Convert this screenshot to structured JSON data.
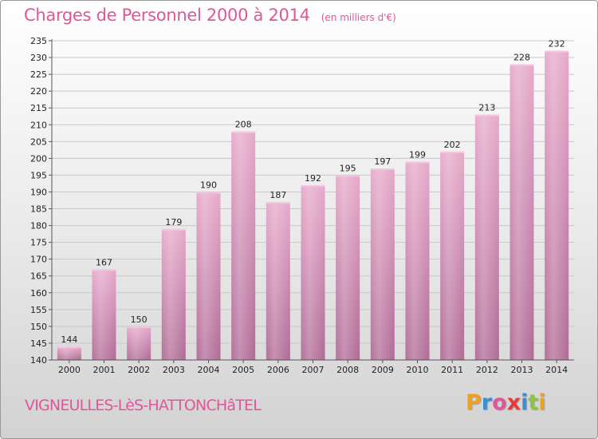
{
  "header": {
    "title": "Charges de Personnel 2000 à 2014",
    "subtitle": "(en milliers d'€)"
  },
  "footer": {
    "commune": "VIGNEULLES-LèS-HATTONCHâTEL",
    "brand_letters": [
      "P",
      "r",
      "o",
      "x",
      "i",
      "t",
      "i"
    ],
    "brand_colors": [
      "#f0a020",
      "#3a8fd0",
      "#e0569a",
      "#e83a3a",
      "#3a8fd0",
      "#8cc63f",
      "#f0a020"
    ]
  },
  "chart_data": {
    "type": "bar",
    "categories": [
      "2000",
      "2001",
      "2002",
      "2003",
      "2004",
      "2005",
      "2006",
      "2007",
      "2008",
      "2009",
      "2010",
      "2011",
      "2012",
      "2013",
      "2014"
    ],
    "values": [
      144,
      167,
      150,
      179,
      190,
      208,
      187,
      192,
      195,
      197,
      199,
      202,
      213,
      228,
      232
    ],
    "data_labels": [
      "144",
      "167",
      "150",
      "179",
      "190",
      "208",
      "187",
      "192",
      "195",
      "197",
      "199",
      "202",
      "213",
      "228",
      "232"
    ],
    "ylim": [
      140,
      235
    ],
    "yticks": [
      140,
      145,
      150,
      155,
      160,
      165,
      170,
      175,
      180,
      185,
      190,
      195,
      200,
      205,
      210,
      215,
      220,
      225,
      230,
      235
    ],
    "grid": true,
    "bar_color": "#d98bb5"
  }
}
